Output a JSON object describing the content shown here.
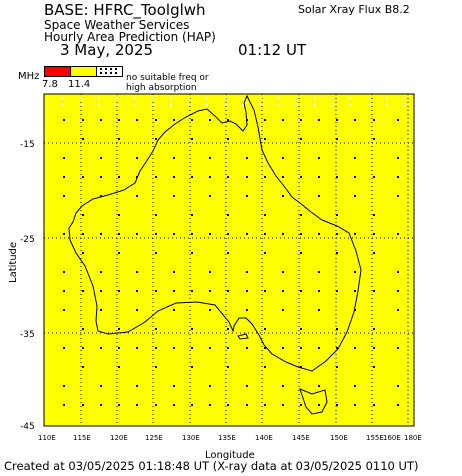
{
  "header": {
    "base": "BASE: HFRC_Toolglwh",
    "line1": "Space Weather Services",
    "line2": "Hourly Area Prediction (HAP)",
    "date": "3 May, 2025",
    "time": "01:12 UT",
    "solar_flux": "Solar Xray Flux B8.2"
  },
  "legend": {
    "unit": "MHz",
    "value_low": "7.8",
    "value_high": "11.4",
    "note_line1": "no suitable freq or",
    "note_line2": "high absorption",
    "colors": {
      "low": "#ff0000",
      "high": "#ffff00",
      "none": "#ffffff"
    }
  },
  "map": {
    "fill_color": "#ffff00",
    "grid_color": "#000000",
    "lon_range": [
      110,
      180
    ],
    "lat_range": [
      -45,
      -9.5
    ],
    "lat_ticks": [
      "-15",
      "-25",
      "-35",
      "-45"
    ],
    "lon_ticks": [
      "110E",
      "115E",
      "120E",
      "125E",
      "130E",
      "135E",
      "140E",
      "145E",
      "150E",
      "155E",
      "160E",
      "180E"
    ],
    "xlabel": "Longitude",
    "ylabel": "Latitude"
  },
  "footer": {
    "created": "Created at 03/05/2025 01:18:48 UT (X-ray data at 03/05/2025 0110 UT)"
  }
}
